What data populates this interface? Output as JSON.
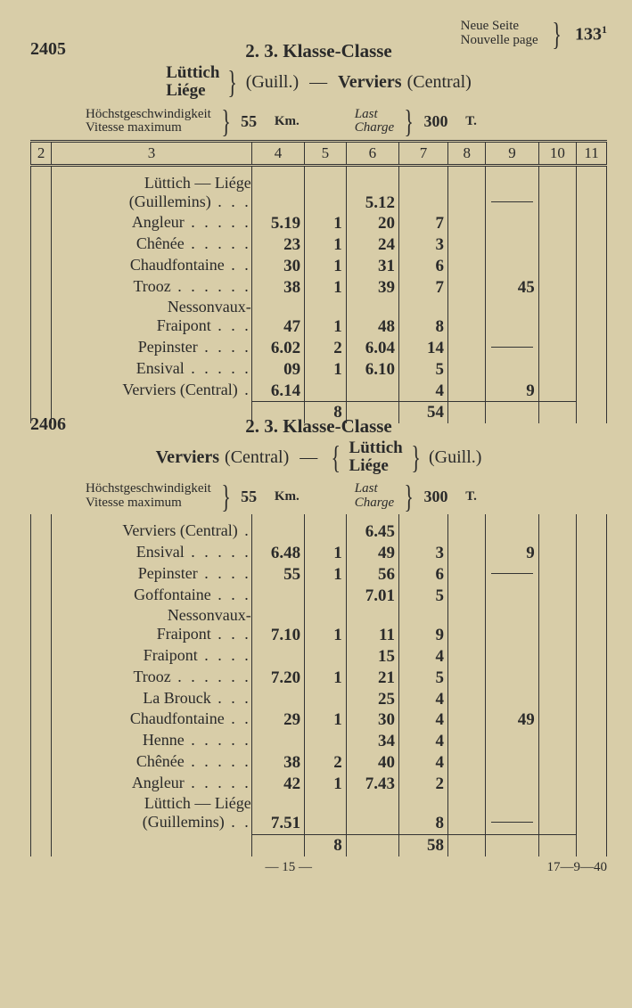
{
  "page_ref": {
    "line1": "Neue Seite",
    "line2": "Nouvelle page",
    "number": "133",
    "sup": "1"
  },
  "footer": {
    "center": "— 15 —",
    "right": "17—9—40"
  },
  "col_headers": [
    "2",
    "3",
    "4",
    "5",
    "6",
    "7",
    "8",
    "9",
    "10",
    "11"
  ],
  "route_words": {
    "luttich": "Lüttich",
    "liege": "Liége",
    "guill": "(Guill.)",
    "verviers": "Verviers",
    "central": "(Central)",
    "dash": "—"
  },
  "speed_labels": {
    "l1": "Höchstgeschwindigkeit",
    "l2": "Vitesse maximum",
    "last": "Last",
    "charge": "Charge",
    "km": "Km.",
    "t": "T."
  },
  "tables": [
    {
      "number": "2405",
      "klasse": "2.  3.  Klasse-Classe",
      "direction": "LV",
      "speed": "55",
      "load": "300",
      "rows": [
        {
          "name": "Lüttich — Liége",
          "indent": 0,
          "nobr": true
        },
        {
          "name": "(Guillemins)",
          "indent": 1,
          "dots": 3,
          "c6": "5.12",
          "dash9": true
        },
        {
          "name": "Angleur",
          "dots": 5,
          "c4": "5.19",
          "c5": "1",
          "c6": "20",
          "c7": "7"
        },
        {
          "name": "Chênée",
          "dots": 5,
          "c4": "23",
          "c5": "1",
          "c6": "24",
          "c7": "3"
        },
        {
          "name": "Chaudfontaine",
          "dots": 2,
          "c4": "30",
          "c5": "1",
          "c6": "31",
          "c7": "6"
        },
        {
          "name": "Trooz",
          "dots": 6,
          "c4": "38",
          "c5": "1",
          "c6": "39",
          "c7": "7",
          "c9": "45"
        },
        {
          "name": "Nessonvaux-",
          "nobr": true
        },
        {
          "name": "Fraipont",
          "indent": 1,
          "dots": 3,
          "c4": "47",
          "c5": "1",
          "c6": "48",
          "c7": "8"
        },
        {
          "name": "Pepinster",
          "dots": 4,
          "c4": "6.02",
          "c5": "2",
          "c6": "6.04",
          "c7": "14",
          "dash9": true
        },
        {
          "name": "Ensival",
          "dots": 5,
          "c4": "09",
          "c5": "1",
          "c6": "6.10",
          "c7": "5"
        },
        {
          "name": "Verviers (Central)",
          "dots": 1,
          "c4": "6.14",
          "c7": "4",
          "c9": "9"
        }
      ],
      "sum": {
        "c5": "8",
        "c7": "54"
      }
    },
    {
      "number": "2406",
      "klasse": "2.  3.  Klasse-Classe",
      "direction": "VL",
      "speed": "55",
      "load": "300",
      "rows": [
        {
          "name": "Verviers (Central)",
          "dots": 1,
          "c6": "6.45"
        },
        {
          "name": "Ensival",
          "dots": 5,
          "c4": "6.48",
          "c5": "1",
          "c6": "49",
          "c7": "3",
          "c9": "9"
        },
        {
          "name": "Pepinster",
          "dots": 4,
          "c4": "55",
          "c5": "1",
          "c6": "56",
          "c7": "6",
          "dash9": true
        },
        {
          "name": "Goffontaine",
          "dots": 3,
          "c6": "7.01",
          "c7": "5"
        },
        {
          "name": "Nessonvaux-",
          "nobr": true
        },
        {
          "name": "Fraipont",
          "indent": 1,
          "dots": 3,
          "c4": "7.10",
          "c5": "1",
          "c6": "11",
          "c7": "9"
        },
        {
          "name": "Fraipont",
          "dots": 4,
          "c6": "15",
          "c7": "4"
        },
        {
          "name": "Trooz",
          "dots": 6,
          "c4": "7.20",
          "c5": "1",
          "c6": "21",
          "c7": "5"
        },
        {
          "name": "La Brouck",
          "dots": 3,
          "c6": "25",
          "c7": "4"
        },
        {
          "name": "Chaudfontaine",
          "dots": 2,
          "c4": "29",
          "c5": "1",
          "c6": "30",
          "c7": "4",
          "c9": "49"
        },
        {
          "name": "Henne",
          "dots": 5,
          "c6": "34",
          "c7": "4"
        },
        {
          "name": "Chênée",
          "dots": 5,
          "c4": "38",
          "c5": "2",
          "c6": "40",
          "c7": "4"
        },
        {
          "name": "Angleur",
          "dots": 5,
          "c4": "42",
          "c5": "1",
          "c6": "7.43",
          "c7": "2"
        },
        {
          "name": "Lüttich — Liége",
          "nobr": true
        },
        {
          "name": "(Guillemins)",
          "indent": 1,
          "dots": 2,
          "c4": "7.51",
          "c7": "8",
          "dash9": true
        }
      ],
      "sum": {
        "c5": "8",
        "c7": "58"
      }
    }
  ]
}
